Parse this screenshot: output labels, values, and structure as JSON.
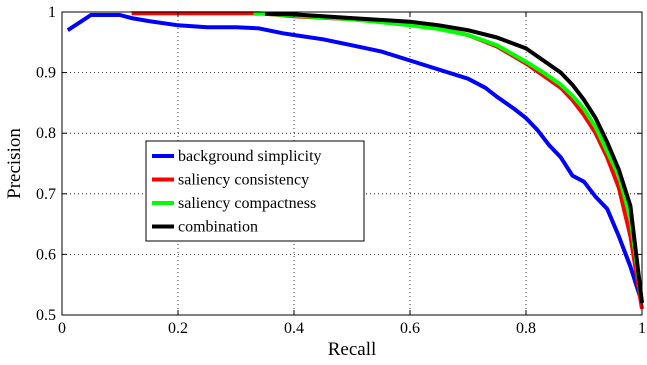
{
  "chart_data": {
    "type": "line",
    "title": "",
    "xlabel": "Recall",
    "ylabel": "Precision",
    "xlim": [
      0,
      1
    ],
    "ylim": [
      0.5,
      1
    ],
    "xticks": [
      0,
      0.2,
      0.4,
      0.6,
      0.8,
      1
    ],
    "xtick_labels": [
      "0",
      "0.2",
      "0.4",
      "0.6",
      "0.8",
      "1"
    ],
    "yticks": [
      0.5,
      0.6,
      0.7,
      0.8,
      0.9,
      1
    ],
    "ytick_labels": [
      "0.5",
      "0.6",
      "0.7",
      "0.8",
      "0.9",
      "1"
    ],
    "grid": true,
    "legend_position": "center-left",
    "series": [
      {
        "name": "background simplicity",
        "color": "#0000ff",
        "x": [
          0.01,
          0.05,
          0.1,
          0.12,
          0.15,
          0.2,
          0.25,
          0.3,
          0.34,
          0.38,
          0.4,
          0.45,
          0.5,
          0.55,
          0.6,
          0.65,
          0.7,
          0.73,
          0.75,
          0.78,
          0.8,
          0.82,
          0.84,
          0.86,
          0.88,
          0.9,
          0.92,
          0.94,
          0.96,
          0.98,
          1.0
        ],
        "y": [
          0.97,
          0.995,
          0.995,
          0.99,
          0.985,
          0.978,
          0.975,
          0.975,
          0.973,
          0.965,
          0.962,
          0.955,
          0.945,
          0.935,
          0.92,
          0.905,
          0.89,
          0.875,
          0.86,
          0.84,
          0.825,
          0.805,
          0.78,
          0.76,
          0.73,
          0.72,
          0.695,
          0.675,
          0.63,
          0.58,
          0.52
        ]
      },
      {
        "name": "saliency consistency",
        "color": "#ff0000",
        "x": [
          0.12,
          0.2,
          0.3,
          0.34,
          0.4,
          0.5,
          0.6,
          0.65,
          0.7,
          0.75,
          0.8,
          0.83,
          0.86,
          0.88,
          0.9,
          0.92,
          0.94,
          0.96,
          0.98,
          1.0
        ],
        "y": [
          0.998,
          0.998,
          0.998,
          0.998,
          0.993,
          0.988,
          0.98,
          0.973,
          0.962,
          0.943,
          0.915,
          0.895,
          0.875,
          0.855,
          0.83,
          0.8,
          0.76,
          0.71,
          0.63,
          0.51
        ]
      },
      {
        "name": "saliency compactness",
        "color": "#00ff00",
        "x": [
          0.33,
          0.35,
          0.4,
          0.5,
          0.6,
          0.65,
          0.7,
          0.75,
          0.8,
          0.83,
          0.86,
          0.88,
          0.9,
          0.92,
          0.94,
          0.96,
          0.98,
          1.0
        ],
        "y": [
          0.997,
          0.997,
          0.994,
          0.988,
          0.978,
          0.972,
          0.962,
          0.945,
          0.918,
          0.9,
          0.88,
          0.862,
          0.84,
          0.81,
          0.77,
          0.73,
          0.66,
          0.52
        ]
      },
      {
        "name": "combination",
        "color": "#000000",
        "x": [
          0.35,
          0.4,
          0.5,
          0.6,
          0.65,
          0.7,
          0.75,
          0.8,
          0.83,
          0.86,
          0.88,
          0.9,
          0.92,
          0.94,
          0.96,
          0.98,
          1.0
        ],
        "y": [
          0.997,
          0.996,
          0.99,
          0.984,
          0.978,
          0.97,
          0.958,
          0.94,
          0.92,
          0.9,
          0.88,
          0.855,
          0.825,
          0.785,
          0.74,
          0.68,
          0.52
        ]
      }
    ]
  }
}
